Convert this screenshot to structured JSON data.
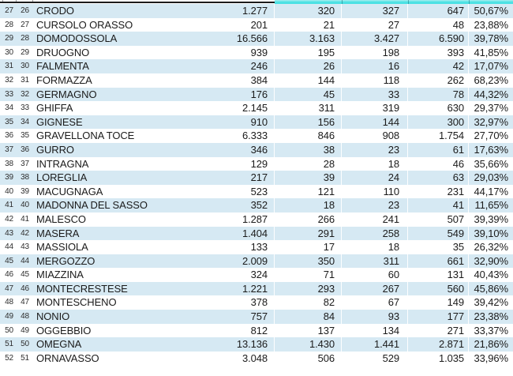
{
  "colors": {
    "row-alt": "#d6e9f3",
    "highlight": "#4ae1e3",
    "text": "#1b1b1b"
  },
  "table": {
    "rows": [
      {
        "row_no": "27",
        "idx": "26",
        "name": "CRODO",
        "col1": "1.277",
        "col2": "320",
        "col3": "327",
        "col4": "647",
        "pct": "50,67%"
      },
      {
        "row_no": "28",
        "idx": "27",
        "name": "CURSOLO ORASSO",
        "col1": "201",
        "col2": "21",
        "col3": "27",
        "col4": "48",
        "pct": "23,88%"
      },
      {
        "row_no": "29",
        "idx": "28",
        "name": "DOMODOSSOLA",
        "col1": "16.566",
        "col2": "3.163",
        "col3": "3.427",
        "col4": "6.590",
        "pct": "39,78%"
      },
      {
        "row_no": "30",
        "idx": "29",
        "name": "DRUOGNO",
        "col1": "939",
        "col2": "195",
        "col3": "198",
        "col4": "393",
        "pct": "41,85%"
      },
      {
        "row_no": "31",
        "idx": "30",
        "name": "FALMENTA",
        "col1": "246",
        "col2": "26",
        "col3": "16",
        "col4": "42",
        "pct": "17,07%"
      },
      {
        "row_no": "32",
        "idx": "31",
        "name": "FORMAZZA",
        "col1": "384",
        "col2": "144",
        "col3": "118",
        "col4": "262",
        "pct": "68,23%"
      },
      {
        "row_no": "33",
        "idx": "32",
        "name": "GERMAGNO",
        "col1": "176",
        "col2": "45",
        "col3": "33",
        "col4": "78",
        "pct": "44,32%"
      },
      {
        "row_no": "34",
        "idx": "33",
        "name": "GHIFFA",
        "col1": "2.145",
        "col2": "311",
        "col3": "319",
        "col4": "630",
        "pct": "29,37%"
      },
      {
        "row_no": "35",
        "idx": "34",
        "name": "GIGNESE",
        "col1": "910",
        "col2": "156",
        "col3": "144",
        "col4": "300",
        "pct": "32,97%"
      },
      {
        "row_no": "36",
        "idx": "35",
        "name": "GRAVELLONA TOCE",
        "col1": "6.333",
        "col2": "846",
        "col3": "908",
        "col4": "1.754",
        "pct": "27,70%"
      },
      {
        "row_no": "37",
        "idx": "36",
        "name": "GURRO",
        "col1": "346",
        "col2": "38",
        "col3": "23",
        "col4": "61",
        "pct": "17,63%"
      },
      {
        "row_no": "38",
        "idx": "37",
        "name": "INTRAGNA",
        "col1": "129",
        "col2": "28",
        "col3": "18",
        "col4": "46",
        "pct": "35,66%"
      },
      {
        "row_no": "39",
        "idx": "38",
        "name": "LOREGLIA",
        "col1": "217",
        "col2": "39",
        "col3": "24",
        "col4": "63",
        "pct": "29,03%"
      },
      {
        "row_no": "40",
        "idx": "39",
        "name": "MACUGNAGA",
        "col1": "523",
        "col2": "121",
        "col3": "110",
        "col4": "231",
        "pct": "44,17%"
      },
      {
        "row_no": "41",
        "idx": "40",
        "name": "MADONNA DEL SASSO",
        "col1": "352",
        "col2": "18",
        "col3": "23",
        "col4": "41",
        "pct": "11,65%"
      },
      {
        "row_no": "42",
        "idx": "41",
        "name": "MALESCO",
        "col1": "1.287",
        "col2": "266",
        "col3": "241",
        "col4": "507",
        "pct": "39,39%"
      },
      {
        "row_no": "43",
        "idx": "42",
        "name": "MASERA",
        "col1": "1.404",
        "col2": "291",
        "col3": "258",
        "col4": "549",
        "pct": "39,10%"
      },
      {
        "row_no": "44",
        "idx": "43",
        "name": "MASSIOLA",
        "col1": "133",
        "col2": "17",
        "col3": "18",
        "col4": "35",
        "pct": "26,32%"
      },
      {
        "row_no": "45",
        "idx": "44",
        "name": "MERGOZZO",
        "col1": "2.009",
        "col2": "350",
        "col3": "311",
        "col4": "661",
        "pct": "32,90%"
      },
      {
        "row_no": "46",
        "idx": "45",
        "name": "MIAZZINA",
        "col1": "324",
        "col2": "71",
        "col3": "60",
        "col4": "131",
        "pct": "40,43%"
      },
      {
        "row_no": "47",
        "idx": "46",
        "name": "MONTECRESTESE",
        "col1": "1.221",
        "col2": "293",
        "col3": "267",
        "col4": "560",
        "pct": "45,86%"
      },
      {
        "row_no": "48",
        "idx": "47",
        "name": "MONTESCHENO",
        "col1": "378",
        "col2": "82",
        "col3": "67",
        "col4": "149",
        "pct": "39,42%"
      },
      {
        "row_no": "49",
        "idx": "48",
        "name": "NONIO",
        "col1": "757",
        "col2": "84",
        "col3": "93",
        "col4": "177",
        "pct": "23,38%"
      },
      {
        "row_no": "50",
        "idx": "49",
        "name": "OGGEBBIO",
        "col1": "812",
        "col2": "137",
        "col3": "134",
        "col4": "271",
        "pct": "33,37%"
      },
      {
        "row_no": "51",
        "idx": "50",
        "name": "OMEGNA",
        "col1": "13.136",
        "col2": "1.430",
        "col3": "1.441",
        "col4": "2.871",
        "pct": "21,86%"
      },
      {
        "row_no": "52",
        "idx": "51",
        "name": "ORNAVASSO",
        "col1": "3.048",
        "col2": "506",
        "col3": "529",
        "col4": "1.035",
        "pct": "33,96%"
      }
    ]
  }
}
